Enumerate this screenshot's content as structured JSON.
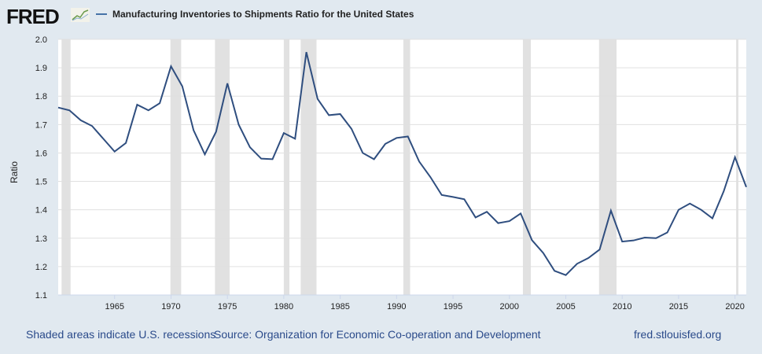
{
  "header": {
    "logo": "FRED",
    "legend_label": "Manufacturing Inventories to Shipments Ratio for the United States"
  },
  "footer": {
    "recessions": "Shaded areas indicate U.S. recessions",
    "source": "Source: Organization for Economic Co-operation and Development",
    "site": "fred.stlouisfed.org"
  },
  "colors": {
    "line": "#2f4e7f",
    "recession": "#e1e1e1",
    "grid": "#e0e0e0"
  },
  "chart_data": {
    "type": "line",
    "title": "Manufacturing Inventories to Shipments Ratio for the United States",
    "xlabel": "",
    "ylabel": "Ratio",
    "xlim": [
      1960,
      2021
    ],
    "ylim": [
      1.1,
      2.0
    ],
    "yticks": [
      "1.1",
      "1.2",
      "1.3",
      "1.4",
      "1.5",
      "1.6",
      "1.7",
      "1.8",
      "1.9",
      "2.0"
    ],
    "xticks": [
      "1965",
      "1970",
      "1975",
      "1980",
      "1985",
      "1990",
      "1995",
      "2000",
      "2005",
      "2010",
      "2015",
      "2020"
    ],
    "recessions": [
      [
        1960.3,
        1961.1
      ],
      [
        1969.95,
        1970.9
      ],
      [
        1973.9,
        1975.2
      ],
      [
        1980.0,
        1980.5
      ],
      [
        1981.5,
        1982.9
      ],
      [
        1990.6,
        1991.2
      ],
      [
        2001.2,
        2001.9
      ],
      [
        2007.95,
        2009.5
      ],
      [
        2020.1,
        2020.3
      ]
    ],
    "x": [
      1960,
      1961,
      1962,
      1963,
      1964,
      1965,
      1966,
      1967,
      1968,
      1969,
      1970,
      1971,
      1972,
      1973,
      1974,
      1975,
      1976,
      1977,
      1978,
      1979,
      1980,
      1981,
      1982,
      1983,
      1984,
      1985,
      1986,
      1987,
      1988,
      1989,
      1990,
      1991,
      1992,
      1993,
      1994,
      1995,
      1996,
      1997,
      1998,
      1999,
      2000,
      2001,
      2002,
      2003,
      2004,
      2005,
      2006,
      2007,
      2008,
      2009,
      2010,
      2011,
      2012,
      2013,
      2014,
      2015,
      2016,
      2017,
      2018,
      2019,
      2020,
      2021
    ],
    "series": [
      {
        "name": "Manufacturing Inventories to Shipments Ratio for the United States",
        "values": [
          1.76,
          1.75,
          1.715,
          1.695,
          1.65,
          1.605,
          1.635,
          1.77,
          1.75,
          1.775,
          1.905,
          1.835,
          1.68,
          1.595,
          1.675,
          1.845,
          1.7,
          1.62,
          1.58,
          1.578,
          1.67,
          1.65,
          1.955,
          1.79,
          1.733,
          1.737,
          1.685,
          1.6,
          1.578,
          1.632,
          1.653,
          1.658,
          1.57,
          1.515,
          1.452,
          1.445,
          1.437,
          1.373,
          1.393,
          1.353,
          1.36,
          1.387,
          1.293,
          1.248,
          1.185,
          1.17,
          1.21,
          1.23,
          1.26,
          1.397,
          1.288,
          1.292,
          1.302,
          1.3,
          1.32,
          1.4,
          1.422,
          1.4,
          1.37,
          1.465,
          1.585,
          1.48
        ]
      }
    ]
  }
}
